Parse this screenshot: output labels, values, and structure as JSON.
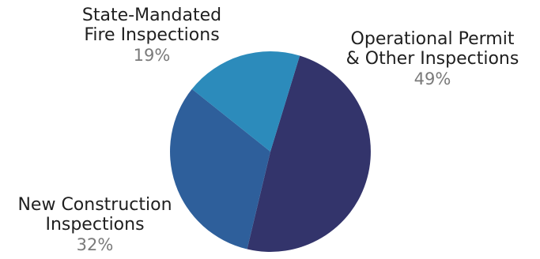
{
  "chart_data": {
    "type": "pie",
    "start_angle_deg": 17,
    "direction": "clockwise",
    "slices": [
      {
        "label_lines": [
          "Operational Permit",
          "& Other Inspections"
        ],
        "value": 49,
        "value_label": "49%",
        "color": "#33346b"
      },
      {
        "label_lines": [
          "New Construction",
          "Inspections"
        ],
        "value": 32,
        "value_label": "32%",
        "color": "#2e5f9b"
      },
      {
        "label_lines": [
          "State-Mandated",
          "Fire Inspections"
        ],
        "value": 19,
        "value_label": "19%",
        "color": "#2c8bbb"
      }
    ]
  }
}
